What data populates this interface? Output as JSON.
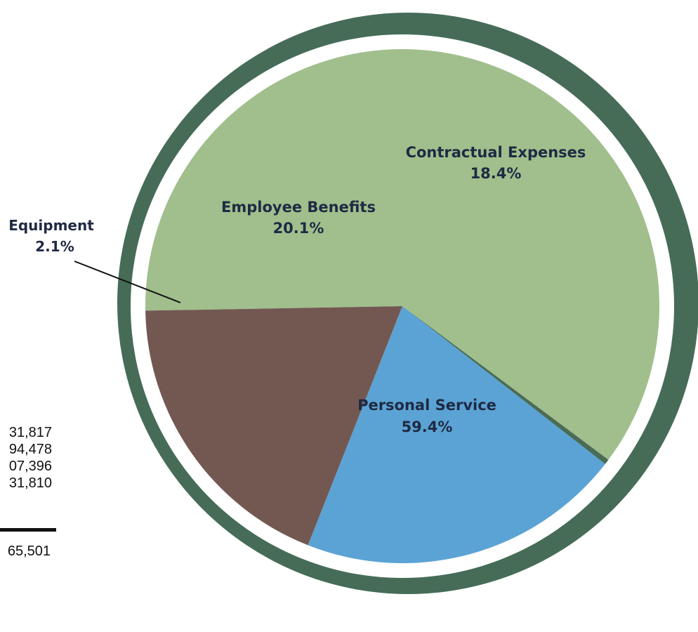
{
  "chart_data": {
    "type": "pie",
    "slices": [
      {
        "label": "Personal Service",
        "value": 59.4,
        "display": "59.4%",
        "color": "#a0bf8c"
      },
      {
        "label": "Equipment",
        "value": 2.1,
        "display": "2.1%",
        "color": "#4a6b55"
      },
      {
        "label": "Employee Benefits",
        "value": 20.1,
        "display": "20.1%",
        "color": "#5ba3d4"
      },
      {
        "label": "Contractual Expenses",
        "value": 18.4,
        "display": "18.4%",
        "color": "#735852"
      }
    ],
    "ring_color": "#466c58"
  },
  "amounts": [
    "31,817",
    "94,478",
    "07,396",
    "31,810"
  ],
  "total": "65,501"
}
